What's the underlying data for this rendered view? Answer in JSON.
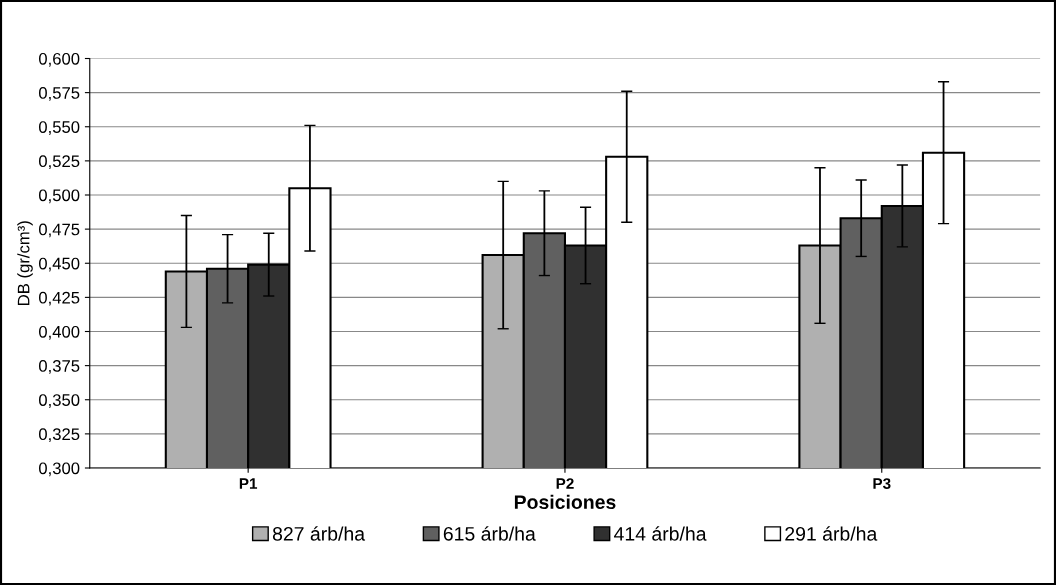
{
  "chart_data": {
    "type": "bar",
    "xlabel": "Posiciones",
    "ylabel": "DB (gr/cm³)",
    "categories": [
      "P1",
      "P2",
      "P3"
    ],
    "series": [
      {
        "name": "827 árb/ha",
        "color": "#b0b0b0",
        "values": [
          0.444,
          0.456,
          0.463
        ],
        "errors": [
          0.041,
          0.054,
          0.057
        ]
      },
      {
        "name": "615 árb/ha",
        "color": "#606060",
        "values": [
          0.446,
          0.472,
          0.483
        ],
        "errors": [
          0.025,
          0.031,
          0.028
        ]
      },
      {
        "name": "414 árb/ha",
        "color": "#303030",
        "values": [
          0.449,
          0.463,
          0.492
        ],
        "errors": [
          0.023,
          0.028,
          0.03
        ]
      },
      {
        "name": "291 árb/ha",
        "color": "#ffffff",
        "values": [
          0.505,
          0.528,
          0.531
        ],
        "errors": [
          0.046,
          0.048,
          0.052
        ]
      }
    ],
    "ylim": [
      0.3,
      0.6
    ],
    "yticks": [
      {
        "value": 0.3,
        "label": "0,300"
      },
      {
        "value": 0.325,
        "label": "0,325"
      },
      {
        "value": 0.35,
        "label": "0,350"
      },
      {
        "value": 0.375,
        "label": "0,375"
      },
      {
        "value": 0.4,
        "label": "0,400"
      },
      {
        "value": 0.425,
        "label": "0,425"
      },
      {
        "value": 0.45,
        "label": "0,450"
      },
      {
        "value": 0.475,
        "label": "0,475"
      },
      {
        "value": 0.5,
        "label": "0,500"
      },
      {
        "value": 0.525,
        "label": "0,525"
      },
      {
        "value": 0.55,
        "label": "0,550"
      },
      {
        "value": 0.575,
        "label": "0,575"
      },
      {
        "value": 0.6,
        "label": "0,600"
      }
    ],
    "grid": "y",
    "legend": "bottom"
  }
}
